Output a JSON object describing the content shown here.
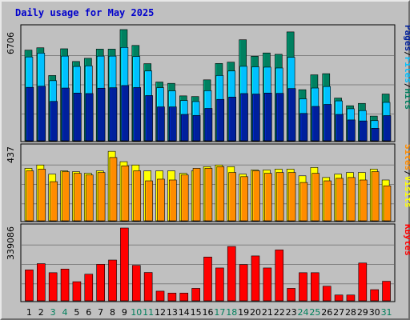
{
  "title": "Daily usage for May 2025",
  "colors": {
    "background": "#c0c0c0",
    "hits": "#008060",
    "files": "#00c0ff",
    "pages": "#00209c",
    "visits": "#ffff00",
    "sites": "#ff8c00",
    "kbytes": "#ff0000",
    "weekday_label": "#000000",
    "weekend_label": "#00805c"
  },
  "chart_data": [
    {
      "type": "bar",
      "panel": "top",
      "ymax_label": "6706",
      "ylim": [
        0,
        6706
      ],
      "right_labels": [
        "Pages",
        "Files",
        "Hits"
      ],
      "categories": [
        "1",
        "2",
        "3",
        "4",
        "5",
        "6",
        "7",
        "8",
        "9",
        "10",
        "11",
        "12",
        "13",
        "14",
        "15",
        "16",
        "17",
        "18",
        "19",
        "20",
        "21",
        "22",
        "23",
        "24",
        "25",
        "26",
        "27",
        "28",
        "29",
        "30",
        "31"
      ],
      "series": [
        {
          "name": "Hits",
          "values": [
            5430,
            5570,
            3910,
            5510,
            4750,
            4940,
            5490,
            5490,
            6660,
            5710,
            4620,
            3520,
            3440,
            2690,
            2650,
            3650,
            4630,
            4710,
            6050,
            5060,
            5260,
            5180,
            6520,
            3060,
            3950,
            4020,
            2560,
            2100,
            2240,
            1480,
            2800
          ]
        },
        {
          "name": "Files",
          "values": [
            5020,
            5250,
            3600,
            5070,
            4450,
            4490,
            5070,
            5070,
            5590,
            5050,
            4180,
            3180,
            2990,
            2410,
            2350,
            3000,
            3910,
            4180,
            4460,
            4430,
            4410,
            4360,
            5000,
            2510,
            3160,
            3250,
            2390,
            1920,
            1810,
            1210,
            2300
          ]
        },
        {
          "name": "Pages",
          "values": [
            3200,
            3270,
            2360,
            3160,
            2860,
            2830,
            3150,
            3180,
            3310,
            3190,
            2710,
            2030,
            2030,
            1580,
            1520,
            1940,
            2480,
            2620,
            2830,
            2800,
            2860,
            2840,
            3130,
            1640,
            2060,
            2180,
            1580,
            1250,
            1190,
            750,
            1510
          ]
        }
      ]
    },
    {
      "type": "bar",
      "panel": "middle",
      "ymax_label": "437",
      "ylim": [
        0,
        437
      ],
      "right_labels": [
        "Sites",
        "Visits"
      ],
      "categories": [
        "1",
        "2",
        "3",
        "4",
        "5",
        "6",
        "7",
        "8",
        "9",
        "10",
        "11",
        "12",
        "13",
        "14",
        "15",
        "16",
        "17",
        "18",
        "19",
        "20",
        "21",
        "22",
        "23",
        "24",
        "25",
        "26",
        "27",
        "28",
        "29",
        "30",
        "31"
      ],
      "series": [
        {
          "name": "Visits",
          "values": [
            315,
            335,
            280,
            300,
            295,
            285,
            300,
            417,
            355,
            335,
            300,
            300,
            300,
            285,
            300,
            325,
            335,
            325,
            280,
            305,
            305,
            310,
            310,
            270,
            320,
            260,
            280,
            290,
            290,
            310,
            245
          ]
        },
        {
          "name": "Sites",
          "values": [
            300,
            310,
            235,
            295,
            285,
            275,
            290,
            380,
            330,
            300,
            240,
            250,
            245,
            275,
            315,
            315,
            325,
            290,
            265,
            300,
            285,
            290,
            290,
            230,
            285,
            240,
            255,
            260,
            245,
            295,
            210
          ]
        }
      ]
    },
    {
      "type": "bar",
      "panel": "bottom",
      "ymax_label": "339086",
      "ylim": [
        0,
        339086
      ],
      "right_labels": [
        "KBytes"
      ],
      "categories": [
        "1",
        "2",
        "3",
        "4",
        "5",
        "6",
        "7",
        "8",
        "9",
        "10",
        "11",
        "12",
        "13",
        "14",
        "15",
        "16",
        "17",
        "18",
        "19",
        "20",
        "21",
        "22",
        "23",
        "24",
        "25",
        "26",
        "27",
        "28",
        "29",
        "30",
        "31"
      ],
      "series": [
        {
          "name": "KBytes",
          "values": [
            144000,
            173000,
            131000,
            148000,
            89000,
            124000,
            170000,
            190000,
            339086,
            165000,
            132000,
            45000,
            36000,
            36000,
            58000,
            204000,
            153000,
            253000,
            169000,
            209000,
            153000,
            237000,
            58000,
            131000,
            131000,
            68000,
            27000,
            27000,
            176000,
            52000,
            91000
          ]
        }
      ]
    }
  ]
}
